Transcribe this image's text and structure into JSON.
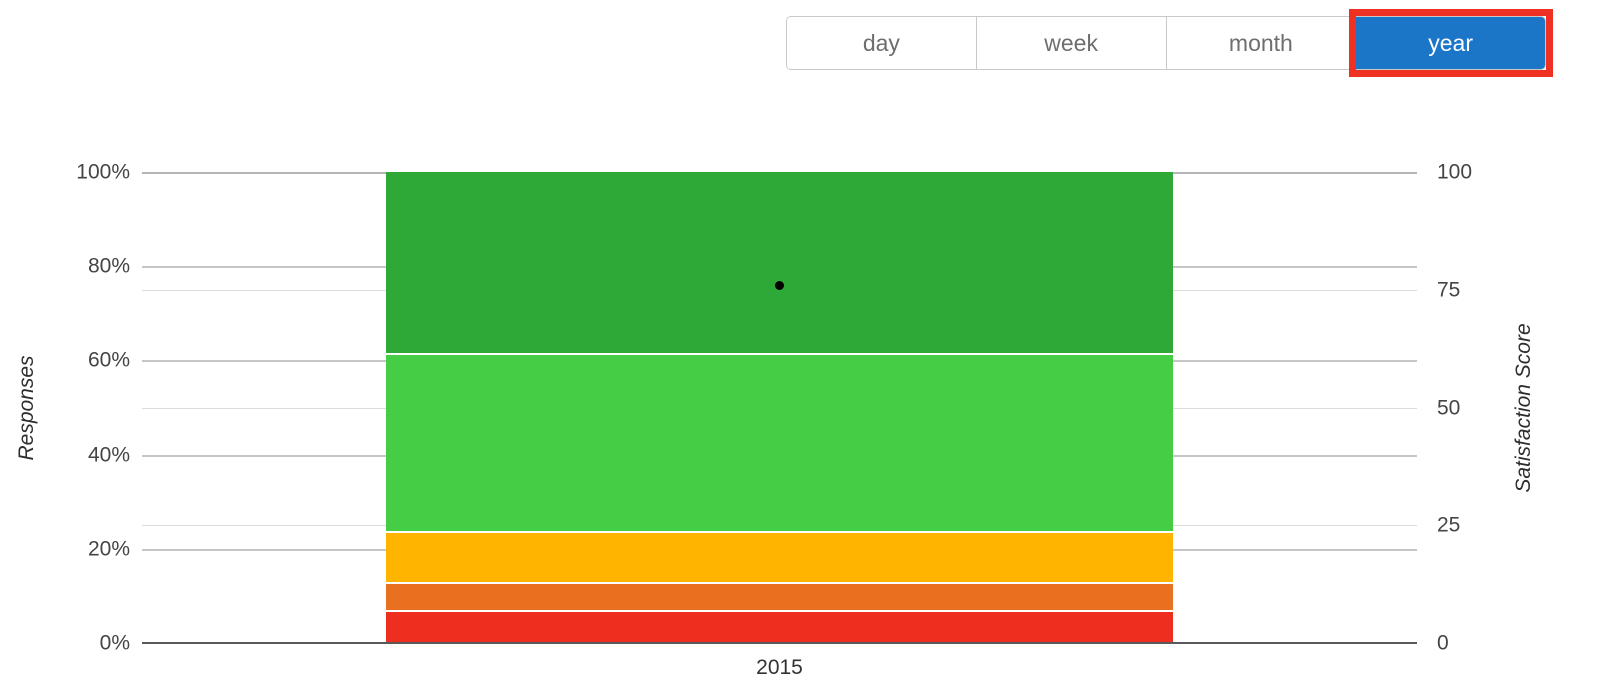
{
  "toolbar": {
    "buttons": [
      {
        "label": "day",
        "active": false
      },
      {
        "label": "week",
        "active": false
      },
      {
        "label": "month",
        "active": false
      },
      {
        "label": "year",
        "active": true
      }
    ],
    "active_bg_color": "#1b76c8",
    "active_text_color": "#ffffff",
    "annotation_border_color": "#ee3123"
  },
  "chart_data": {
    "type": "bar",
    "stacked": true,
    "categories": [
      "2015"
    ],
    "series": [
      {
        "name": "red",
        "color": "#ee2e1f",
        "values": [
          7.1
        ]
      },
      {
        "name": "orange",
        "color": "#e8701e",
        "values": [
          5.9
        ]
      },
      {
        "name": "amber",
        "color": "#ffb400",
        "values": [
          10.7
        ]
      },
      {
        "name": "light-green",
        "color": "#45ce45",
        "values": [
          37.8
        ]
      },
      {
        "name": "dark-green",
        "color": "#2ea836",
        "values": [
          38.5
        ]
      }
    ],
    "point_series": {
      "name": "satisfaction-score-point",
      "color": "#000000",
      "values": [
        76
      ]
    },
    "left_axis": {
      "title": "Responses",
      "range": [
        0,
        100
      ],
      "ticks": [
        {
          "label": "0%",
          "value": 0
        },
        {
          "label": "20%",
          "value": 20
        },
        {
          "label": "40%",
          "value": 40
        },
        {
          "label": "60%",
          "value": 60
        },
        {
          "label": "80%",
          "value": 80
        },
        {
          "label": "100%",
          "value": 100
        }
      ]
    },
    "right_axis": {
      "title": "Satisfaction Score",
      "range": [
        0,
        100
      ],
      "ticks": [
        {
          "label": "0",
          "value": 0
        },
        {
          "label": "25",
          "value": 25
        },
        {
          "label": "50",
          "value": 50
        },
        {
          "label": "75",
          "value": 75
        },
        {
          "label": "100",
          "value": 100
        }
      ]
    },
    "x_axis": {
      "ticks": [
        "2015"
      ]
    },
    "grid": true,
    "legend": "none"
  }
}
